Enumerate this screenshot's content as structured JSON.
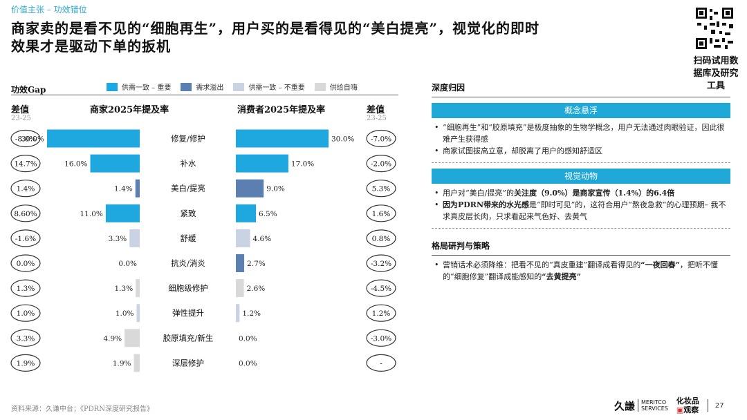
{
  "header": {
    "section_tag": "价值主张 – 功效错位",
    "headline_line1": "商家卖的是看不见的“细胞再生”，用户买的是看得见的“美白提亮”，视觉化的即时",
    "headline_line2": "效果才是驱动下单的扳机",
    "qr_text": "扫码试用数据库及研究工具"
  },
  "legend": {
    "title": "功效Gap",
    "items": [
      {
        "label": "供需一致 – 重要",
        "color": "#1fa7e0"
      },
      {
        "label": "需求溢出",
        "color": "#5b7fb0"
      },
      {
        "label": "供需一致 – 不重要",
        "color": "#c9d3e3"
      },
      {
        "label": "供给自嗨",
        "color": "#d9d9d9"
      }
    ]
  },
  "columns": {
    "left_diff": "差值",
    "left_diff_sub": "23-25",
    "merchant": "商家2025年提及率",
    "consumer": "消费者2025年提及率",
    "right_diff": "差值",
    "right_diff_sub": "23-25"
  },
  "chart_data": {
    "type": "bar",
    "subtype": "butterfly",
    "categories": [
      "修复/修护",
      "补水",
      "美白/提亮",
      "紧致",
      "舒缓",
      "抗炎/消炎",
      "细胞级修护",
      "弹性提升",
      "胶原填充/新生",
      "深层修护"
    ],
    "series": [
      {
        "name": "商家2025年提及率",
        "values": [
          30.0,
          16.0,
          1.4,
          11.0,
          3.3,
          0.0,
          1.3,
          1.0,
          4.9,
          1.9
        ],
        "labels": [
          "30.0%",
          "16.0%",
          "1.4%",
          "11.0%",
          "3.3%",
          "0.0%",
          "1.3%",
          "1.0%",
          "4.9%",
          "1.9%"
        ],
        "diff_labels": [
          "-8.0%",
          "14.7%",
          "1.4%",
          "8.60%",
          "-1.6%",
          "0.0%",
          "1.3%",
          "1.0%",
          "3.3%",
          "1.9%"
        ]
      },
      {
        "name": "消费者2025年提及率",
        "values": [
          30.0,
          17.0,
          9.0,
          6.5,
          4.6,
          2.7,
          2.6,
          1.2,
          0.0,
          0.0
        ],
        "labels": [
          "30.0%",
          "17.0%",
          "9.0%",
          "6.5%",
          "4.6%",
          "2.7%",
          "2.6%",
          "1.2%",
          "0.0%",
          "0.0%"
        ],
        "diff_labels": [
          "-7.0%",
          "-2.0%",
          "5.3%",
          "1.6%",
          "0.8%",
          "-3.2%",
          "-4.5%",
          "1.2%",
          "-3.0%",
          "-"
        ]
      }
    ],
    "bar_colors": [
      "#1fa7e0",
      "#1fa7e0",
      "#5b7fb0",
      "#1fa7e0",
      "#c9d3e3",
      "#5b7fb0",
      "#d9d9d9",
      "#c9d3e3",
      "#d9d9d9",
      "#d9d9d9"
    ],
    "scale_max": 30.0
  },
  "right": {
    "head1": "深度归因",
    "band1": "概念悬浮",
    "b1_1": "“细胞再生”和“胶原填充”是极度抽象的生物学概念，用户无法通过肉眼验证，因此很难产生获得感",
    "b1_2": "商家试图拔高立意，却脱离了用户的感知舒适区",
    "band2": "视觉动物",
    "b2_1a": "用户对“美白/提亮”的",
    "b2_1b": "关注度（9.0%）是商家宣传（1.4%）的6.4倍",
    "b2_2a": "因为PDRN带来的水光感",
    "b2_2b": "是“即时可见”的，这符合用户“熬夜急救”的心理预期– 我不求真皮层长肉，只求看起来气色好、去黄气",
    "head2": "格局研判与策略",
    "b3_a": "营销话术必须降维：把看不见的“真皮重建”翻译成看得见的",
    "b3_b": "“一夜回春”",
    "b3_c": "，把听不懂的“细胞修复”翻译成能感知的",
    "b3_d": "“去黄提亮”"
  },
  "footer": {
    "source": "资料来源：久谦中台；《PDRN深度研究报告》",
    "logo_jiu": "久謙",
    "logo_meritco_1": "MERITCO",
    "logo_meritco_2": "SERVICES",
    "logo_hzp_1": "化妆品",
    "logo_hzp_2": "观察",
    "page": "27"
  }
}
